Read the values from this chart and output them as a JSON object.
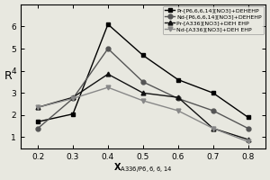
{
  "x": [
    0.2,
    0.3,
    0.4,
    0.5,
    0.6,
    0.7,
    0.8
  ],
  "series": [
    {
      "label": "Pr-[P6,6,6,14][NO3]+DEHEHP",
      "y": [
        1.7,
        2.05,
        6.1,
        4.7,
        3.6,
        3.0,
        1.9
      ],
      "marker": "s",
      "color": "#000000",
      "linestyle": "-"
    },
    {
      "label": "Nd-[P6,6,6,14][NO3]+DEHEHP",
      "y": [
        1.4,
        2.75,
        5.0,
        3.5,
        2.75,
        2.2,
        1.4
      ],
      "marker": "o",
      "color": "#555555",
      "linestyle": "-"
    },
    {
      "label": "Pr-[A336][NO3]+DEH EHP",
      "y": [
        2.35,
        2.8,
        3.85,
        3.0,
        2.8,
        1.4,
        0.9
      ],
      "marker": "^",
      "color": "#111111",
      "linestyle": "-"
    },
    {
      "label": "Nd-[A336][NO3]+DEH EHP",
      "y": [
        2.35,
        2.75,
        3.25,
        2.65,
        2.2,
        1.4,
        0.8
      ],
      "marker": "v",
      "color": "#888888",
      "linestyle": "-"
    }
  ],
  "xlabel": "$\\mathbf{X}$$_{\\mathrm{A336/P6,6,6,14}}$",
  "ylabel": "R",
  "xlim": [
    0.15,
    0.85
  ],
  "ylim": [
    0.5,
    7.0
  ],
  "xticks": [
    0.2,
    0.3,
    0.4,
    0.5,
    0.6,
    0.7,
    0.8
  ],
  "yticks": [
    1,
    2,
    3,
    4,
    5,
    6
  ],
  "background_color": "#e8e8e0"
}
